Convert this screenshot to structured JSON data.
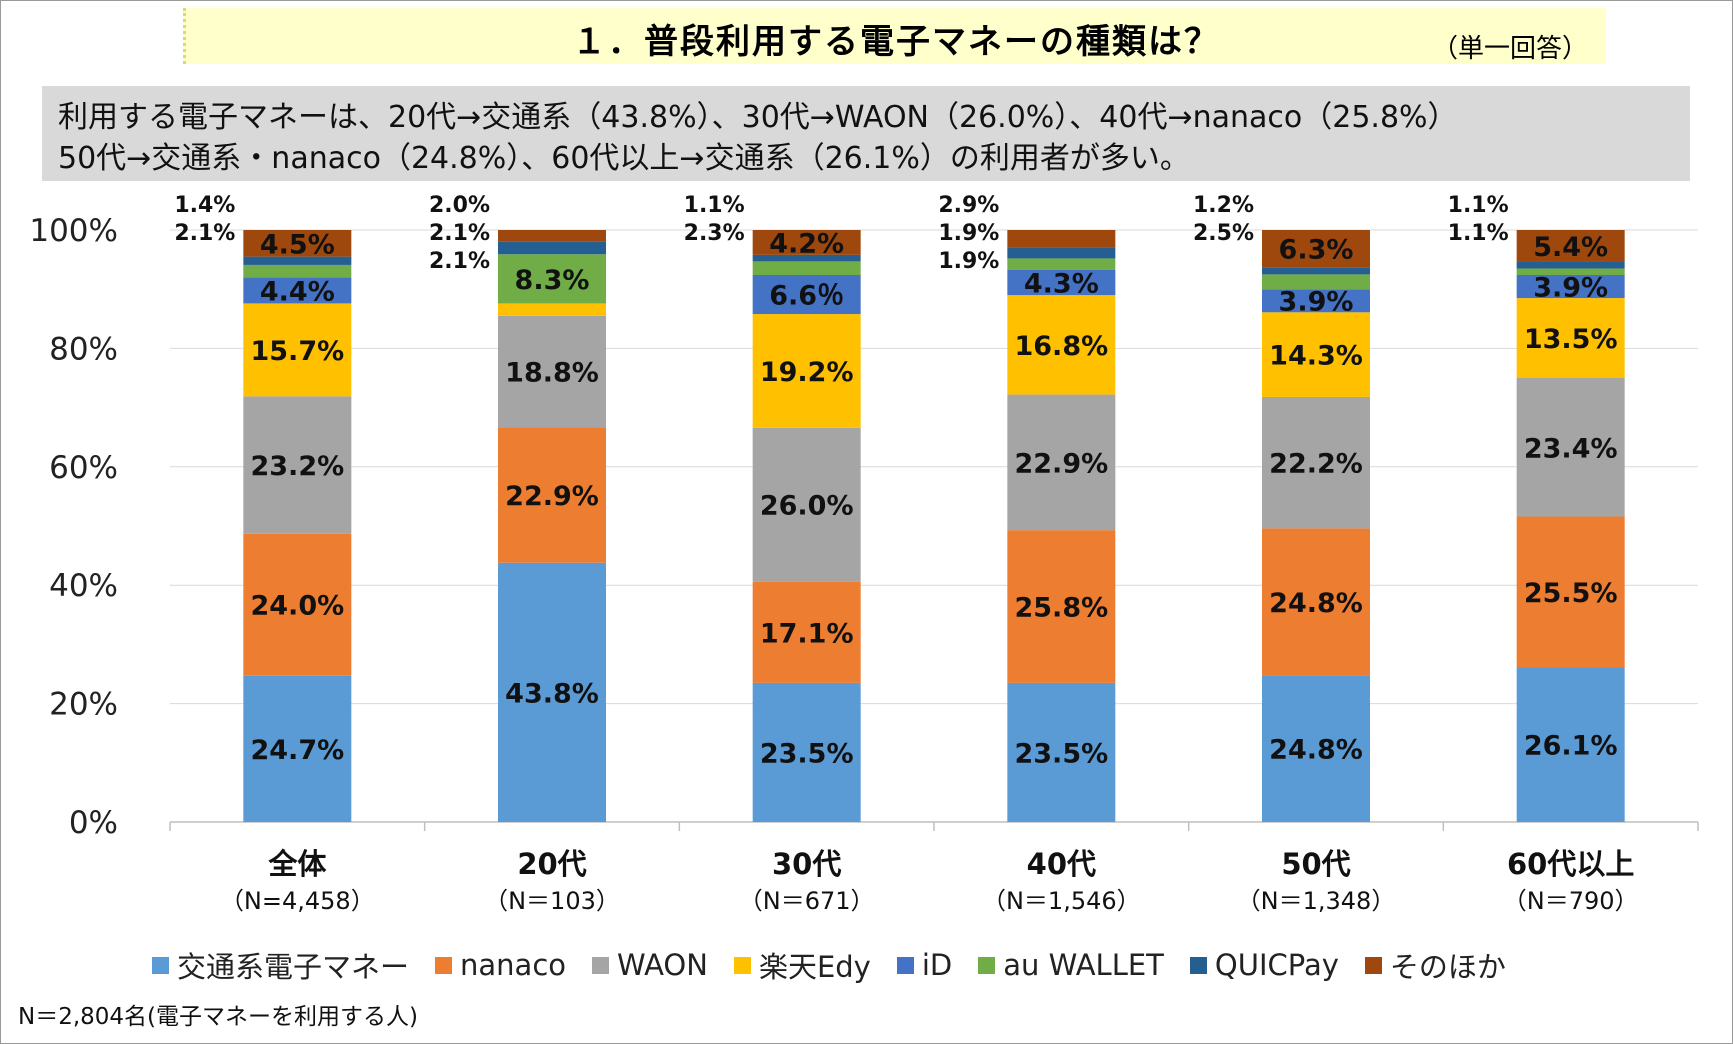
{
  "header": {
    "title": "１．普段利用する電子マネーの種類は？",
    "answer_type": "（単一回答）"
  },
  "summary": {
    "line1": "利用する電子マネーは、20代→交通系（43.8%）、30代→WAON（26.0%）、40代→nanaco（25.8%）",
    "line2": "50代→交通系・nanaco（24.8%）、60代以上→交通系（26.1%）の利用者が多い。"
  },
  "footnote": "N＝2,804名(電子マネーを利用する人)",
  "chart_data": {
    "type": "bar",
    "stacked": true,
    "ylim": [
      0,
      100
    ],
    "yticks": [
      "0%",
      "20%",
      "40%",
      "60%",
      "80%",
      "100%"
    ],
    "categories": [
      {
        "name": "全体",
        "n": "（N=4,458）"
      },
      {
        "name": "20代",
        "n": "（N＝103）"
      },
      {
        "name": "30代",
        "n": "（N＝671）"
      },
      {
        "name": "40代",
        "n": "（N＝1,546）"
      },
      {
        "name": "50代",
        "n": "（N＝1,348）"
      },
      {
        "name": "60代以上",
        "n": "（N＝790）"
      }
    ],
    "series": [
      {
        "name": "交通系電子マネー",
        "color": "#5b9bd5",
        "values": [
          24.7,
          43.8,
          23.5,
          23.5,
          24.8,
          26.1
        ],
        "labels": [
          "24.7%",
          "43.8%",
          "23.5%",
          "23.5%",
          "24.8%",
          "26.1%"
        ]
      },
      {
        "name": "nanaco",
        "color": "#ed7d31",
        "values": [
          24.0,
          22.9,
          17.1,
          25.8,
          24.8,
          25.5
        ],
        "labels": [
          "24.0%",
          "22.9%",
          "17.1%",
          "25.8%",
          "24.8%",
          "25.5%"
        ]
      },
      {
        "name": "WAON",
        "color": "#a5a5a5",
        "values": [
          23.2,
          18.8,
          26.0,
          22.9,
          22.2,
          23.4
        ],
        "labels": [
          "23.2%",
          "18.8%",
          "26.0%",
          "22.9%",
          "22.2%",
          "23.4%"
        ]
      },
      {
        "name": "楽天Edy",
        "color": "#ffc000",
        "values": [
          15.7,
          2.1,
          19.2,
          16.8,
          14.3,
          13.5
        ],
        "labels": [
          "15.7%",
          "2.1%",
          "19.2%",
          "16.8%",
          "14.3%",
          "13.5%"
        ]
      },
      {
        "name": "iD",
        "color": "#4472c4",
        "values": [
          4.4,
          0.0,
          6.6,
          4.3,
          3.9,
          3.9
        ],
        "labels": [
          "4.4%",
          "",
          "6.6％",
          "4.3%",
          "3.9%",
          "3.9%"
        ]
      },
      {
        "name": "au WALLET",
        "color": "#70ad47",
        "values": [
          2.1,
          8.3,
          2.3,
          1.9,
          2.5,
          1.1
        ],
        "labels": [
          "2.1%",
          "8.3%",
          "2.3%",
          "1.9%",
          "2.5%",
          "1.1%"
        ]
      },
      {
        "name": "QUICPay",
        "color": "#255e91",
        "values": [
          1.4,
          2.1,
          1.1,
          1.9,
          1.2,
          1.1
        ],
        "labels": [
          "1.4%",
          "2.1%",
          "1.1%",
          "1.9%",
          "1.2%",
          "1.1%"
        ]
      },
      {
        "name": "そのほか",
        "color": "#9e480e",
        "values": [
          4.5,
          2.0,
          4.2,
          2.9,
          6.3,
          5.4
        ],
        "labels": [
          "4.5%",
          "2.0%",
          "4.2%",
          "2.9%",
          "6.3%",
          "5.4%"
        ]
      }
    ],
    "legend_position": "bottom",
    "grid": true
  }
}
